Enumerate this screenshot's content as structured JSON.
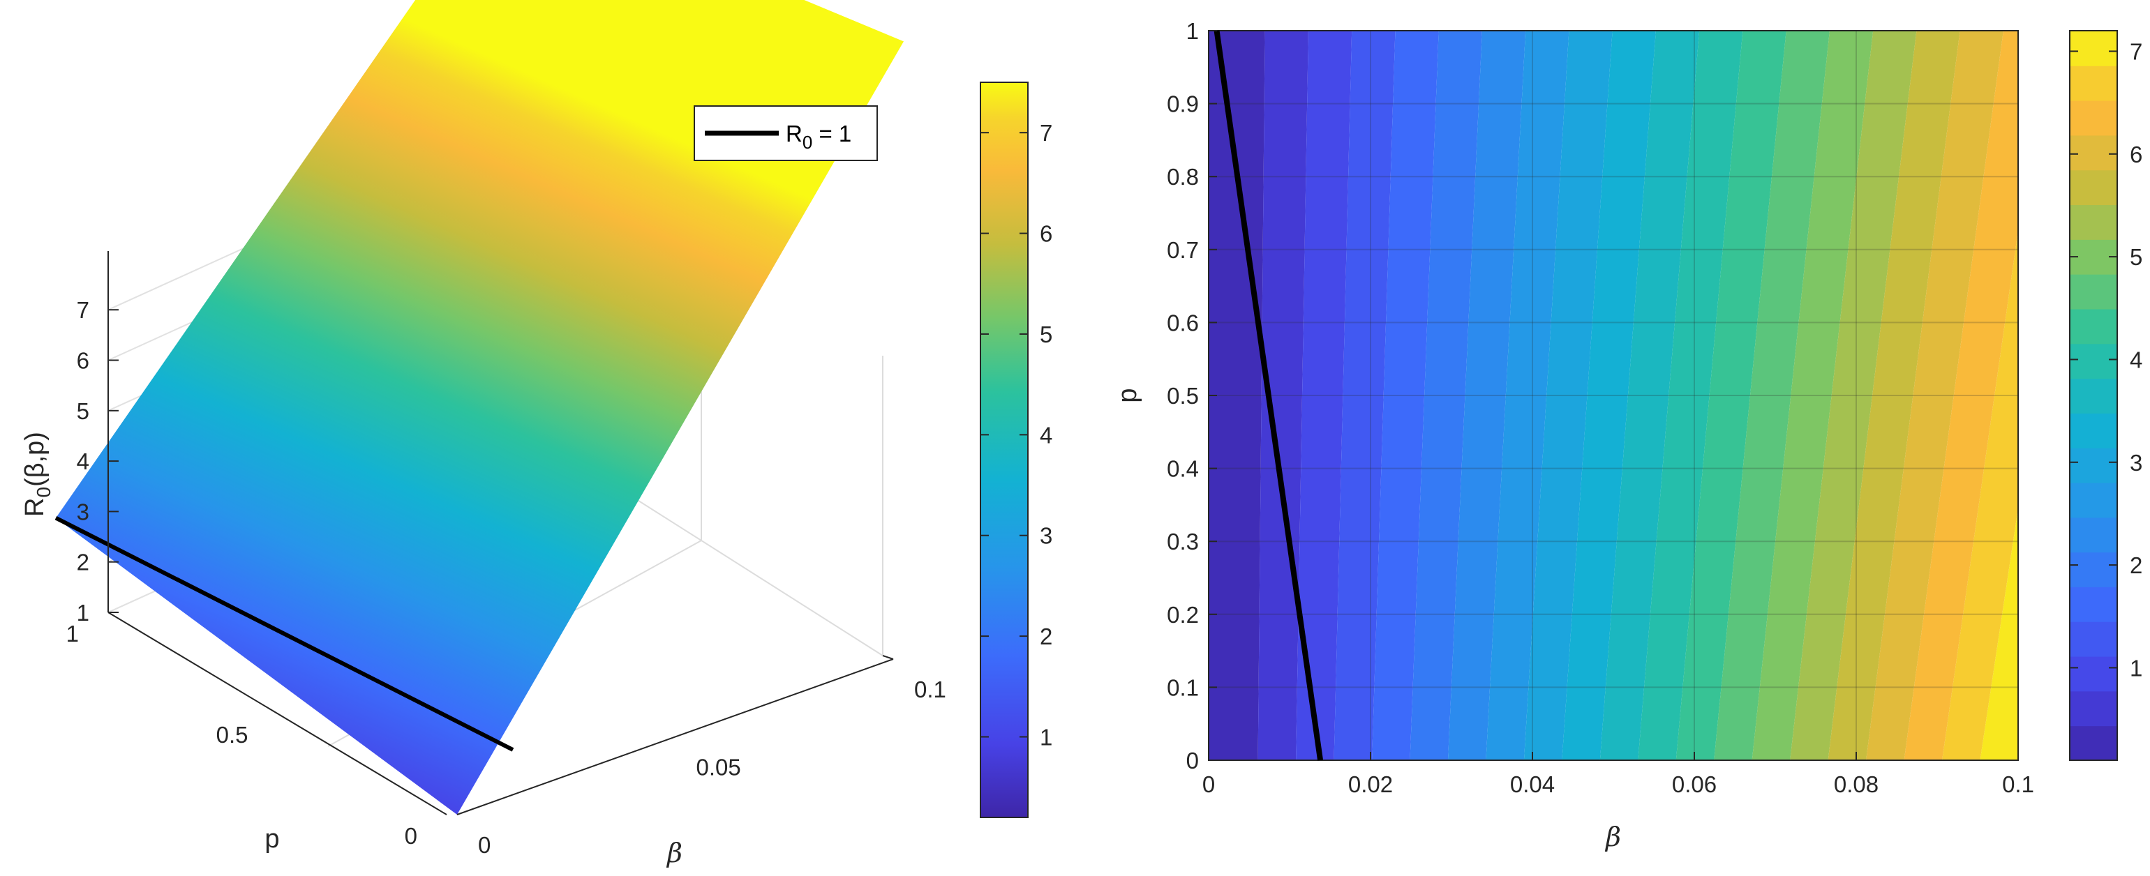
{
  "chart_data": [
    {
      "type": "surface",
      "xlabel": "β",
      "ylabel": "p",
      "zlabel_main": "R",
      "zlabel_sub": "0",
      "zlabel_tail": "(β,p)",
      "xlim": [
        0,
        0.1
      ],
      "ylim": [
        0,
        1
      ],
      "zlim": [
        0.2,
        7.5
      ],
      "x_ticks": [
        "0",
        "0.05",
        "0.1"
      ],
      "y_ticks": [
        "0",
        "0.5",
        "1"
      ],
      "z_ticks": [
        "1",
        "2",
        "3",
        "4",
        "5",
        "6",
        "7"
      ],
      "corner_values": {
        "beta0_p0": 0.2,
        "beta0_p1": 0.95,
        "beta01_p0": 7.5,
        "beta01_p1": 6.4
      },
      "legend": {
        "line_label": "R",
        "line_sub": "0",
        "line_tail": " = 1",
        "placement": "top-right"
      },
      "contour_line": {
        "value": 1,
        "p0_beta": 0.0138,
        "p1_beta": 0.001
      },
      "colorbar": {
        "ticks": [
          "1",
          "2",
          "3",
          "4",
          "5",
          "6",
          "7"
        ],
        "range": [
          0.2,
          7.5
        ]
      }
    },
    {
      "type": "heatmap",
      "xlabel": "β",
      "ylabel": "p",
      "xlim": [
        0,
        0.1
      ],
      "ylim": [
        0,
        1
      ],
      "x_ticks": [
        "0",
        "0.02",
        "0.04",
        "0.06",
        "0.08",
        "0.1"
      ],
      "y_ticks": [
        "0",
        "0.1",
        "0.2",
        "0.3",
        "0.4",
        "0.5",
        "0.6",
        "0.7",
        "0.8",
        "0.9",
        "1"
      ],
      "contour_line": {
        "value": 1,
        "p0_beta": 0.0138,
        "p1_beta": 0.001
      },
      "levels": 21,
      "colorbar": {
        "ticks": [
          "1",
          "2",
          "3",
          "4",
          "5",
          "6",
          "7"
        ],
        "range": [
          0.1,
          7.2
        ]
      }
    }
  ]
}
